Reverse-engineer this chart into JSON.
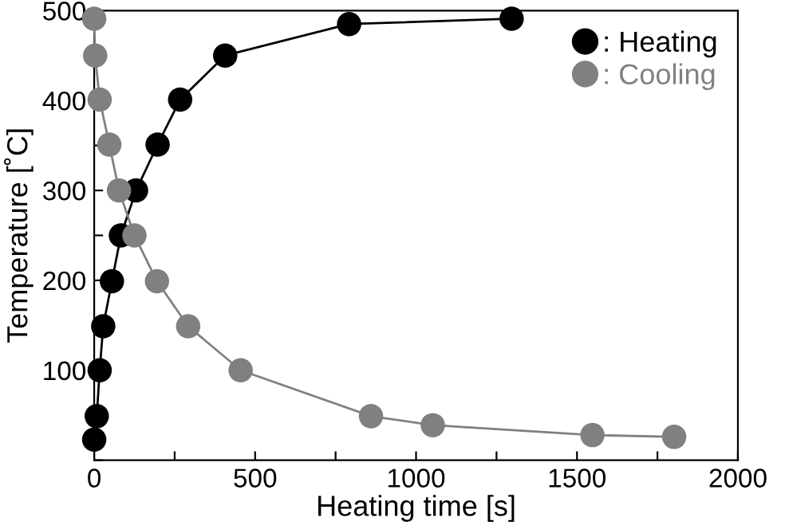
{
  "chart_data": {
    "type": "line",
    "xlabel": "Heating time [s]",
    "ylabel": "Temperature [˚C]",
    "xlim": [
      0,
      2000
    ],
    "ylim": [
      0,
      500
    ],
    "xticks": [
      0,
      {
        "value": 250,
        "label": null
      },
      500,
      {
        "value": 750,
        "label": null
      },
      1000,
      {
        "value": 1250,
        "label": null
      },
      1500,
      {
        "value": 1750,
        "label": null
      },
      2000
    ],
    "yticks": [
      {
        "value": 0,
        "label": null
      },
      {
        "value": 50,
        "label": null
      },
      100,
      {
        "value": 150,
        "label": null
      },
      200,
      {
        "value": 250,
        "label": null
      },
      300,
      {
        "value": 350,
        "label": null
      },
      400,
      {
        "value": 450,
        "label": null
      },
      500
    ],
    "marker": "circle",
    "line_style": "solid",
    "grid": false,
    "legend": "top right",
    "series": [
      {
        "name": ": Heating",
        "color": "#000000",
        "x": [
          0,
          8,
          17,
          28,
          55,
          83,
          130,
          197,
          267,
          407,
          792,
          1297
        ],
        "values": [
          23,
          49,
          100,
          149,
          199,
          250,
          300,
          351,
          401,
          450,
          485,
          491
        ]
      },
      {
        "name": ": Cooling",
        "color": "#808080",
        "x": [
          0,
          3,
          17,
          47,
          77,
          125,
          195,
          292,
          455,
          860,
          1052,
          1548,
          1802
        ],
        "values": [
          491,
          450,
          401,
          351,
          300,
          250,
          199,
          149,
          100,
          49,
          39,
          28,
          26
        ]
      }
    ]
  }
}
